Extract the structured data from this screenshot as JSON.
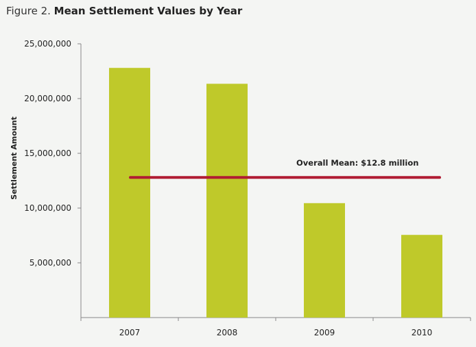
{
  "figure": {
    "prefix": "Figure 2.",
    "title": "Mean Settlement Values by Year"
  },
  "colors": {
    "bar": "#bfc92a",
    "mean_line": "#b01c33",
    "axis": "#888888",
    "background": "#f4f5f3"
  },
  "chart_data": {
    "type": "bar",
    "categories": [
      "2007",
      "2008",
      "2009",
      "2010"
    ],
    "values": [
      22800000,
      21350000,
      10450000,
      7550000
    ],
    "title": "Mean Settlement Values by Year",
    "xlabel": "",
    "ylabel": "Settlement Amount",
    "ylim": [
      0,
      25000000
    ],
    "yticks": [
      5000000,
      10000000,
      15000000,
      20000000,
      25000000
    ],
    "ytick_labels": [
      "5,000,000",
      "10,000,000",
      "15,000,000",
      "20,000,000",
      "25,000,000"
    ],
    "grid": false,
    "legend": "none",
    "annotations": [
      {
        "text": "Overall Mean: $12.8 million",
        "value": 12800000,
        "kind": "horizontal-line"
      }
    ]
  }
}
